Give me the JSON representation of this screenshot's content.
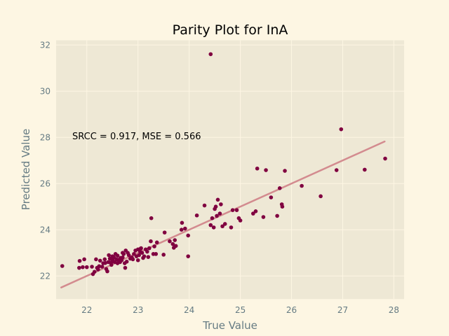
{
  "chart_data": {
    "type": "scatter",
    "title": "Parity Plot for InA",
    "xlabel": "True Value",
    "ylabel": "Predicted Value",
    "xlim": [
      21.4,
      28.2
    ],
    "ylim": [
      21.0,
      32.2
    ],
    "xticks": [
      22,
      23,
      24,
      25,
      26,
      27,
      28
    ],
    "yticks": [
      22,
      24,
      26,
      28,
      30,
      32
    ],
    "grid": true,
    "annotation": "SRCC = 0.917, MSE = 0.566",
    "colors": {
      "background": "#fdf6e3",
      "plot_area": "#eee8d5",
      "grid": "#fdf6e3",
      "points": "#800040",
      "fit_line": "#d38b8f"
    },
    "fit_line": {
      "x": [
        21.5,
        27.82
      ],
      "y": [
        21.5,
        27.82
      ]
    },
    "points": {
      "x": [
        21.52,
        21.85,
        21.86,
        21.92,
        21.95,
        22.0,
        22.1,
        22.12,
        22.15,
        22.18,
        22.2,
        22.22,
        22.24,
        22.26,
        22.3,
        22.32,
        22.35,
        22.36,
        22.38,
        22.4,
        22.42,
        22.43,
        22.45,
        22.46,
        22.48,
        22.5,
        22.5,
        22.52,
        22.53,
        22.55,
        22.56,
        22.58,
        22.6,
        22.6,
        22.62,
        22.63,
        22.65,
        22.66,
        22.68,
        22.7,
        22.7,
        22.72,
        22.74,
        22.75,
        22.76,
        22.78,
        22.8,
        22.82,
        22.85,
        22.88,
        22.9,
        22.92,
        22.95,
        22.97,
        23.0,
        23.0,
        23.02,
        23.04,
        23.05,
        23.06,
        23.08,
        23.1,
        23.12,
        23.15,
        23.18,
        23.2,
        23.22,
        23.25,
        23.26,
        23.3,
        23.32,
        23.35,
        23.37,
        23.5,
        23.52,
        23.62,
        23.68,
        23.7,
        23.72,
        23.74,
        23.85,
        23.86,
        23.92,
        23.98,
        23.98,
        24.15,
        24.3,
        24.42,
        24.45,
        24.48,
        24.5,
        24.52,
        24.54,
        24.56,
        24.6,
        24.62,
        24.65,
        24.7,
        24.82,
        24.85,
        24.93,
        24.97,
        25.0,
        25.25,
        25.3,
        25.33,
        25.45,
        25.5,
        25.6,
        25.72,
        25.77,
        25.81,
        25.82,
        25.87,
        26.2,
        26.57,
        26.88,
        26.97,
        27.43,
        27.83,
        24.42
      ],
      "y": [
        22.43,
        22.35,
        22.65,
        22.38,
        22.72,
        22.38,
        22.4,
        22.08,
        22.18,
        22.72,
        22.35,
        22.28,
        22.42,
        22.66,
        22.4,
        22.55,
        22.72,
        22.56,
        22.3,
        22.2,
        22.6,
        22.9,
        22.75,
        22.58,
        22.48,
        22.7,
        22.85,
        22.62,
        22.8,
        22.6,
        22.95,
        22.72,
        22.55,
        22.88,
        22.7,
        22.65,
        22.6,
        22.78,
        22.68,
        22.8,
        23.0,
        22.95,
        22.55,
        22.35,
        23.1,
        22.62,
        23.0,
        22.9,
        22.75,
        22.8,
        22.72,
        22.95,
        23.1,
        22.85,
        22.68,
        23.15,
        22.9,
        23.05,
        23.18,
        23.2,
        23.0,
        22.78,
        22.85,
        23.15,
        23.05,
        22.82,
        23.2,
        23.5,
        24.5,
        22.95,
        23.28,
        22.95,
        23.45,
        22.92,
        23.88,
        23.5,
        23.38,
        23.22,
        23.55,
        23.3,
        24.0,
        24.3,
        24.05,
        22.85,
        23.75,
        24.62,
        25.05,
        24.2,
        24.5,
        24.1,
        24.9,
        25.0,
        24.6,
        25.3,
        24.7,
        25.1,
        24.15,
        24.25,
        24.1,
        24.85,
        24.85,
        24.5,
        24.4,
        24.7,
        24.8,
        26.65,
        24.55,
        26.58,
        25.4,
        24.6,
        25.8,
        25.1,
        25.0,
        26.55,
        25.9,
        25.45,
        26.58,
        28.35,
        26.6,
        27.08,
        31.6
      ]
    }
  }
}
